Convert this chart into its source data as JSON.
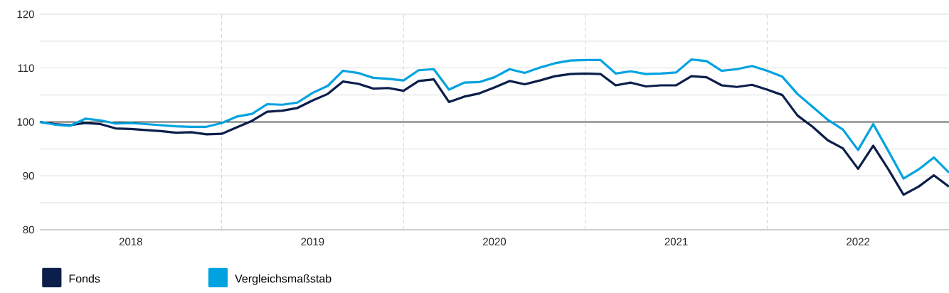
{
  "chart_data": {
    "type": "line",
    "x": [
      "2018-01",
      "2018-02",
      "2018-03",
      "2018-04",
      "2018-05",
      "2018-06",
      "2018-07",
      "2018-08",
      "2018-09",
      "2018-10",
      "2018-11",
      "2018-12",
      "2019-01",
      "2019-02",
      "2019-03",
      "2019-04",
      "2019-05",
      "2019-06",
      "2019-07",
      "2019-08",
      "2019-09",
      "2019-10",
      "2019-11",
      "2019-12",
      "2020-01",
      "2020-02",
      "2020-03",
      "2020-04",
      "2020-05",
      "2020-06",
      "2020-07",
      "2020-08",
      "2020-09",
      "2020-10",
      "2020-11",
      "2020-12",
      "2021-01",
      "2021-02",
      "2021-03",
      "2021-04",
      "2021-05",
      "2021-06",
      "2021-07",
      "2021-08",
      "2021-09",
      "2021-10",
      "2021-11",
      "2021-12",
      "2022-01",
      "2022-02",
      "2022-03",
      "2022-04",
      "2022-05",
      "2022-06",
      "2022-07",
      "2022-08",
      "2022-09",
      "2022-10",
      "2022-11",
      "2022-12",
      "2023-01"
    ],
    "series": [
      {
        "name": "Fonds",
        "color": "#0c1f4b",
        "values": [
          100,
          99.6,
          99.4,
          99.8,
          99.6,
          98.8,
          98.7,
          98.5,
          98.3,
          98.0,
          98.1,
          97.7,
          97.8,
          99.0,
          100.2,
          101.9,
          102.1,
          102.6,
          104.0,
          105.2,
          107.5,
          107.1,
          106.2,
          106.3,
          105.8,
          107.6,
          107.9,
          103.7,
          104.7,
          105.3,
          106.4,
          107.6,
          107.0,
          107.7,
          108.5,
          108.9,
          109.0,
          108.9,
          106.8,
          107.3,
          106.6,
          106.8,
          106.8,
          108.5,
          108.3,
          106.8,
          106.5,
          106.9,
          106.0,
          105.0,
          101.2,
          99.1,
          96.6,
          95.1,
          91.3,
          95.6,
          91.2,
          86.5,
          88.0,
          90.1,
          88.0
        ]
      },
      {
        "name": "Vergleichsmaßstab",
        "color": "#00a3e0",
        "values": [
          100,
          99.5,
          99.3,
          100.6,
          100.3,
          99.7,
          99.8,
          99.6,
          99.4,
          99.2,
          99.1,
          99.1,
          99.8,
          101.0,
          101.5,
          103.3,
          103.2,
          103.6,
          105.4,
          106.7,
          109.5,
          109.1,
          108.2,
          108.0,
          107.7,
          109.6,
          109.8,
          106.0,
          107.3,
          107.4,
          108.3,
          109.8,
          109.1,
          110.1,
          110.9,
          111.4,
          111.5,
          111.5,
          109.0,
          109.4,
          108.9,
          109.0,
          109.2,
          111.6,
          111.3,
          109.5,
          109.8,
          110.4,
          109.5,
          108.4,
          105.2,
          102.8,
          100.4,
          98.6,
          94.8,
          99.6,
          94.6,
          89.5,
          91.2,
          93.4,
          90.6
        ]
      }
    ],
    "xlim": [
      "2018-01",
      "2023-01"
    ],
    "xticks": [
      {
        "value": "2018-07",
        "label": "2018"
      },
      {
        "value": "2019-01",
        "label": null
      },
      {
        "value": "2019-07",
        "label": "2019"
      },
      {
        "value": "2020-01",
        "label": null
      },
      {
        "value": "2020-07",
        "label": "2020"
      },
      {
        "value": "2021-01",
        "label": null
      },
      {
        "value": "2021-07",
        "label": "2021"
      },
      {
        "value": "2022-01",
        "label": null
      },
      {
        "value": "2022-07",
        "label": "2022"
      }
    ],
    "ylim": [
      80,
      120
    ],
    "yticks": [
      80,
      {
        "value": 85,
        "label": null
      },
      90,
      {
        "value": 95,
        "label": null
      },
      100,
      {
        "value": 105,
        "label": null
      },
      110,
      {
        "value": 115,
        "label": null
      },
      120
    ],
    "ref_lines": [
      {
        "axis": "y",
        "value": 100,
        "color": "#000000"
      }
    ],
    "grid": true,
    "legend": "bottom left",
    "marker": "none",
    "line_style": "solid"
  }
}
